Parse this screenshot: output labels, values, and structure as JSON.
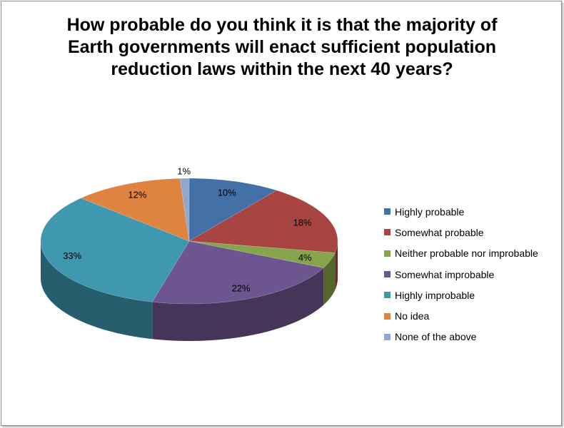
{
  "chart_data": {
    "type": "pie",
    "style": "3d",
    "title": "How probable do you think it is that the majority of Earth governments will enact sufficient population reduction laws within the next 40 years?",
    "categories": [
      "Highly probable",
      "Somewhat probable",
      "Neither probable nor improbable",
      "Somewhat improbable",
      "Highly improbable",
      "No idea",
      "None of the above"
    ],
    "values": [
      10,
      18,
      4,
      22,
      33,
      12,
      1
    ],
    "data_labels": [
      "10%",
      "18%",
      "4%",
      "22%",
      "33%",
      "12%",
      "1%"
    ],
    "colors": [
      "#4470A8",
      "#A84442",
      "#86A54A",
      "#6D5590",
      "#3F98B0",
      "#DE8440",
      "#8FA8D0"
    ],
    "legend_position": "right"
  }
}
